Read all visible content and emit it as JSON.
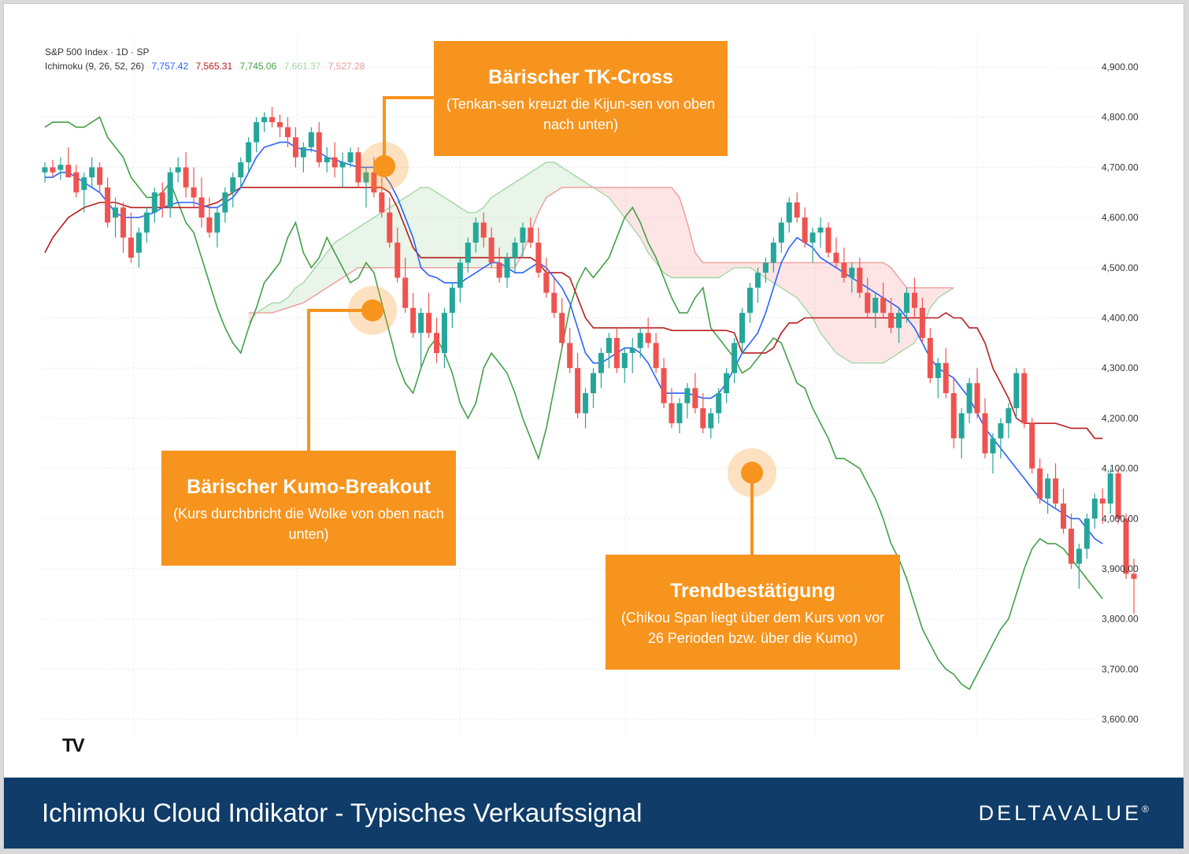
{
  "header": {
    "symbol": "S&P 500 Index · 1D · SP",
    "indicator": "Ichimoku (9, 26, 52, 26)",
    "values": [
      {
        "text": "7,757.42",
        "color": "#2962ff"
      },
      {
        "text": "7,565.31",
        "color": "#b71c1c"
      },
      {
        "text": "7,745.06",
        "color": "#43a047"
      },
      {
        "text": "7,661.37",
        "color": "#a5d6a7"
      },
      {
        "text": "7,527.28",
        "color": "#ef9a9a"
      }
    ]
  },
  "colors": {
    "tenkan": "#2962ff",
    "kijun": "#b71c1c",
    "chikou": "#43a047",
    "senkou_a": "#a5d6a7",
    "senkou_b": "#ef9a9a",
    "up": "#26a69a",
    "down": "#ef5350",
    "callout": "#f7941d",
    "footer": "#0f3c68"
  },
  "chart_data": {
    "type": "candlestick",
    "ylim": [
      3580,
      4940
    ],
    "yticks": [
      "3,600.00",
      "3,700.00",
      "3,800.00",
      "3,900.00",
      "4,000.00",
      "4,100.00",
      "4,200.00",
      "4,300.00",
      "4,400.00",
      "4,500.00",
      "4,600.00",
      "4,700.00",
      "4,800.00",
      "4,900.00"
    ],
    "candles": [
      [
        4690,
        4710,
        4670,
        4700
      ],
      [
        4700,
        4715,
        4680,
        4690
      ],
      [
        4695,
        4720,
        4675,
        4705
      ],
      [
        4705,
        4740,
        4690,
        4680
      ],
      [
        4690,
        4705,
        4640,
        4650
      ],
      [
        4655,
        4690,
        4610,
        4680
      ],
      [
        4680,
        4720,
        4660,
        4700
      ],
      [
        4700,
        4710,
        4650,
        4665
      ],
      [
        4660,
        4680,
        4580,
        4590
      ],
      [
        4600,
        4640,
        4560,
        4620
      ],
      [
        4620,
        4630,
        4530,
        4560
      ],
      [
        4560,
        4610,
        4510,
        4520
      ],
      [
        4530,
        4580,
        4500,
        4570
      ],
      [
        4570,
        4620,
        4550,
        4610
      ],
      [
        4610,
        4660,
        4590,
        4650
      ],
      [
        4650,
        4670,
        4600,
        4620
      ],
      [
        4620,
        4700,
        4600,
        4690
      ],
      [
        4690,
        4720,
        4670,
        4700
      ],
      [
        4700,
        4730,
        4640,
        4660
      ],
      [
        4660,
        4700,
        4620,
        4640
      ],
      [
        4640,
        4680,
        4580,
        4600
      ],
      [
        4600,
        4640,
        4560,
        4570
      ],
      [
        4570,
        4620,
        4540,
        4610
      ],
      [
        4610,
        4660,
        4590,
        4650
      ],
      [
        4650,
        4690,
        4620,
        4680
      ],
      [
        4680,
        4720,
        4660,
        4710
      ],
      [
        4710,
        4760,
        4690,
        4750
      ],
      [
        4750,
        4800,
        4730,
        4790
      ],
      [
        4790,
        4810,
        4770,
        4800
      ],
      [
        4800,
        4820,
        4780,
        4790
      ],
      [
        4790,
        4805,
        4760,
        4780
      ],
      [
        4780,
        4800,
        4740,
        4760
      ],
      [
        4760,
        4780,
        4700,
        4720
      ],
      [
        4720,
        4750,
        4690,
        4740
      ],
      [
        4740,
        4780,
        4730,
        4770
      ],
      [
        4770,
        4790,
        4700,
        4710
      ],
      [
        4710,
        4740,
        4690,
        4720
      ],
      [
        4720,
        4750,
        4680,
        4700
      ],
      [
        4700,
        4730,
        4660,
        4710
      ],
      [
        4710,
        4740,
        4700,
        4730
      ],
      [
        4730,
        4740,
        4660,
        4670
      ],
      [
        4670,
        4700,
        4620,
        4690
      ],
      [
        4690,
        4720,
        4640,
        4650
      ],
      [
        4650,
        4680,
        4600,
        4610
      ],
      [
        4610,
        4640,
        4540,
        4550
      ],
      [
        4550,
        4580,
        4470,
        4480
      ],
      [
        4480,
        4520,
        4410,
        4420
      ],
      [
        4420,
        4450,
        4360,
        4370
      ],
      [
        4370,
        4420,
        4300,
        4410
      ],
      [
        4410,
        4450,
        4360,
        4370
      ],
      [
        4370,
        4400,
        4310,
        4330
      ],
      [
        4330,
        4420,
        4300,
        4410
      ],
      [
        4410,
        4470,
        4380,
        4460
      ],
      [
        4460,
        4520,
        4430,
        4510
      ],
      [
        4510,
        4560,
        4490,
        4550
      ],
      [
        4550,
        4600,
        4530,
        4590
      ],
      [
        4590,
        4610,
        4540,
        4560
      ],
      [
        4560,
        4580,
        4500,
        4510
      ],
      [
        4510,
        4540,
        4470,
        4480
      ],
      [
        4480,
        4530,
        4460,
        4520
      ],
      [
        4520,
        4560,
        4490,
        4550
      ],
      [
        4550,
        4590,
        4520,
        4580
      ],
      [
        4580,
        4600,
        4540,
        4550
      ],
      [
        4550,
        4580,
        4480,
        4490
      ],
      [
        4490,
        4520,
        4440,
        4450
      ],
      [
        4450,
        4480,
        4400,
        4410
      ],
      [
        4410,
        4440,
        4340,
        4350
      ],
      [
        4350,
        4380,
        4290,
        4300
      ],
      [
        4300,
        4330,
        4200,
        4210
      ],
      [
        4210,
        4260,
        4180,
        4250
      ],
      [
        4250,
        4300,
        4220,
        4290
      ],
      [
        4290,
        4340,
        4260,
        4330
      ],
      [
        4330,
        4370,
        4300,
        4360
      ],
      [
        4360,
        4380,
        4290,
        4300
      ],
      [
        4300,
        4340,
        4270,
        4330
      ],
      [
        4330,
        4360,
        4290,
        4340
      ],
      [
        4340,
        4380,
        4320,
        4370
      ],
      [
        4370,
        4400,
        4340,
        4350
      ],
      [
        4350,
        4370,
        4290,
        4300
      ],
      [
        4300,
        4320,
        4220,
        4230
      ],
      [
        4230,
        4260,
        4180,
        4190
      ],
      [
        4190,
        4240,
        4170,
        4230
      ],
      [
        4230,
        4270,
        4200,
        4260
      ],
      [
        4260,
        4290,
        4210,
        4220
      ],
      [
        4220,
        4250,
        4170,
        4180
      ],
      [
        4180,
        4220,
        4160,
        4210
      ],
      [
        4210,
        4260,
        4190,
        4250
      ],
      [
        4250,
        4300,
        4230,
        4290
      ],
      [
        4290,
        4360,
        4270,
        4350
      ],
      [
        4350,
        4420,
        4330,
        4410
      ],
      [
        4410,
        4470,
        4390,
        4460
      ],
      [
        4460,
        4500,
        4430,
        4490
      ],
      [
        4490,
        4520,
        4470,
        4510
      ],
      [
        4510,
        4560,
        4490,
        4550
      ],
      [
        4550,
        4600,
        4530,
        4590
      ],
      [
        4590,
        4640,
        4570,
        4630
      ],
      [
        4630,
        4650,
        4590,
        4600
      ],
      [
        4600,
        4620,
        4540,
        4550
      ],
      [
        4550,
        4580,
        4510,
        4570
      ],
      [
        4570,
        4600,
        4540,
        4580
      ],
      [
        4580,
        4590,
        4520,
        4530
      ],
      [
        4530,
        4560,
        4500,
        4510
      ],
      [
        4510,
        4540,
        4470,
        4480
      ],
      [
        4480,
        4510,
        4450,
        4500
      ],
      [
        4500,
        4520,
        4440,
        4450
      ],
      [
        4450,
        4480,
        4400,
        4410
      ],
      [
        4410,
        4450,
        4380,
        4440
      ],
      [
        4440,
        4470,
        4400,
        4410
      ],
      [
        4410,
        4440,
        4370,
        4380
      ],
      [
        4380,
        4420,
        4350,
        4410
      ],
      [
        4410,
        4460,
        4390,
        4450
      ],
      [
        4450,
        4480,
        4400,
        4420
      ],
      [
        4420,
        4440,
        4350,
        4360
      ],
      [
        4360,
        4380,
        4270,
        4280
      ],
      [
        4280,
        4320,
        4240,
        4310
      ],
      [
        4310,
        4340,
        4240,
        4250
      ],
      [
        4250,
        4280,
        4140,
        4160
      ],
      [
        4160,
        4220,
        4120,
        4210
      ],
      [
        4210,
        4280,
        4190,
        4270
      ],
      [
        4270,
        4300,
        4200,
        4210
      ],
      [
        4210,
        4240,
        4120,
        4130
      ],
      [
        4130,
        4170,
        4090,
        4160
      ],
      [
        4160,
        4200,
        4120,
        4190
      ],
      [
        4190,
        4230,
        4160,
        4220
      ],
      [
        4220,
        4300,
        4200,
        4290
      ],
      [
        4290,
        4300,
        4180,
        4190
      ],
      [
        4190,
        4200,
        4090,
        4100
      ],
      [
        4100,
        4120,
        4030,
        4040
      ],
      [
        4040,
        4090,
        4010,
        4080
      ],
      [
        4080,
        4110,
        4020,
        4030
      ],
      [
        4030,
        4060,
        3970,
        3980
      ],
      [
        3980,
        4010,
        3900,
        3910
      ],
      [
        3910,
        3950,
        3860,
        3940
      ],
      [
        3940,
        4010,
        3920,
        4000
      ],
      [
        4000,
        4050,
        3980,
        4040
      ],
      [
        4040,
        4060,
        3990,
        4030
      ],
      [
        4030,
        4100,
        4010,
        4090
      ],
      [
        4090,
        4100,
        3990,
        4000
      ],
      [
        4000,
        4010,
        3880,
        3890
      ],
      [
        3890,
        3920,
        3810,
        3880
      ]
    ],
    "tenkan": [
      4680,
      4680,
      4690,
      4690,
      4680,
      4670,
      4660,
      4650,
      4630,
      4610,
      4600,
      4600,
      4600,
      4605,
      4610,
      4620,
      4625,
      4630,
      4630,
      4630,
      4625,
      4620,
      4620,
      4630,
      4640,
      4660,
      4690,
      4720,
      4740,
      4745,
      4750,
      4750,
      4740,
      4735,
      4735,
      4730,
      4720,
      4715,
      4710,
      4705,
      4700,
      4700,
      4700,
      4690,
      4670,
      4640,
      4600,
      4560,
      4500,
      4485,
      4480,
      4470,
      4470,
      4470,
      4480,
      4490,
      4500,
      4510,
      4510,
      4500,
      4490,
      4490,
      4500,
      4510,
      4500,
      4480,
      4460,
      4430,
      4380,
      4330,
      4310,
      4310,
      4320,
      4330,
      4340,
      4340,
      4330,
      4310,
      4280,
      4250,
      4250,
      4250,
      4250,
      4245,
      4240,
      4240,
      4250,
      4270,
      4300,
      4330,
      4350,
      4370,
      4410,
      4460,
      4510,
      4540,
      4560,
      4550,
      4540,
      4520,
      4510,
      4500,
      4490,
      4480,
      4470,
      4460,
      4450,
      4440,
      4430,
      4420,
      4400,
      4380,
      4350,
      4320,
      4300,
      4290,
      4280,
      4260,
      4240,
      4210,
      4180,
      4160,
      4140,
      4120,
      4100,
      4080,
      4060,
      4040,
      4030,
      4020,
      4010,
      4000,
      4000,
      3980,
      3960,
      3950
    ],
    "kijun": [
      4530,
      4560,
      4580,
      4600,
      4610,
      4620,
      4625,
      4630,
      4630,
      4630,
      4625,
      4620,
      4620,
      4620,
      4620,
      4620,
      4620,
      4620,
      4620,
      4620,
      4620,
      4625,
      4630,
      4640,
      4650,
      4660,
      4660,
      4660,
      4660,
      4660,
      4660,
      4660,
      4660,
      4660,
      4660,
      4660,
      4660,
      4660,
      4660,
      4660,
      4660,
      4660,
      4660,
      4660,
      4650,
      4620,
      4580,
      4540,
      4520,
      4520,
      4520,
      4520,
      4520,
      4520,
      4520,
      4520,
      4520,
      4520,
      4520,
      4520,
      4520,
      4520,
      4520,
      4510,
      4490,
      4490,
      4490,
      4480,
      4440,
      4400,
      4380,
      4380,
      4380,
      4380,
      4380,
      4380,
      4380,
      4380,
      4380,
      4380,
      4375,
      4375,
      4375,
      4375,
      4375,
      4375,
      4375,
      4375,
      4370,
      4330,
      4330,
      4330,
      4330,
      4340,
      4370,
      4390,
      4390,
      4400,
      4400,
      4400,
      4400,
      4400,
      4400,
      4400,
      4400,
      4400,
      4400,
      4400,
      4400,
      4400,
      4400,
      4400,
      4400,
      4400,
      4400,
      4410,
      4400,
      4400,
      4380,
      4380,
      4350,
      4300,
      4270,
      4240,
      4200,
      4190,
      4190,
      4190,
      4190,
      4190,
      4185,
      4180,
      4180,
      4180,
      4160,
      4160
    ],
    "senkou_a": [
      4390,
      4410,
      4420,
      4430,
      4430,
      4440,
      4460,
      4470,
      4490,
      4510,
      4530,
      4550,
      4560,
      4570,
      4580,
      4590,
      4600,
      4610,
      4620,
      4630,
      4640,
      4650,
      4660,
      4660,
      4650,
      4640,
      4630,
      4620,
      4610,
      4610,
      4620,
      4640,
      4650,
      4660,
      4670,
      4680,
      4690,
      4700,
      4710,
      4710,
      4700,
      4690,
      4680,
      4670,
      4660,
      4650,
      4640,
      4620,
      4600,
      4580,
      4560,
      4530,
      4510,
      4490,
      4480,
      4480,
      4480,
      4480,
      4480,
      4480,
      4480,
      4490,
      4500,
      4500,
      4500,
      4490,
      4480,
      4470,
      4460,
      4450,
      4440,
      4420,
      4400,
      4370,
      4350,
      4330,
      4320,
      4310,
      4310,
      4310,
      4310,
      4310,
      4320,
      4330,
      4340,
      4350,
      4380,
      4420,
      4440,
      4450,
      4460
    ],
    "senkou_b": [
      4410,
      4410,
      4410,
      4410,
      4415,
      4420,
      4425,
      4430,
      4440,
      4450,
      4460,
      4470,
      4480,
      4490,
      4500,
      4500,
      4500,
      4500,
      4500,
      4500,
      4500,
      4500,
      4500,
      4500,
      4500,
      4500,
      4500,
      4500,
      4500,
      4500,
      4500,
      4500,
      4500,
      4500,
      4500,
      4530,
      4570,
      4610,
      4640,
      4650,
      4660,
      4660,
      4660,
      4660,
      4660,
      4660,
      4660,
      4660,
      4660,
      4660,
      4660,
      4660,
      4660,
      4660,
      4660,
      4640,
      4590,
      4530,
      4510,
      4510,
      4510,
      4510,
      4510,
      4510,
      4510,
      4510,
      4510,
      4510,
      4510,
      4510,
      4510,
      4510,
      4510,
      4510,
      4510,
      4510,
      4510,
      4510,
      4510,
      4510,
      4510,
      4510,
      4500,
      4480,
      4460,
      4460,
      4460,
      4460,
      4460,
      4460,
      4460
    ],
    "chikou": [
      4780,
      4790,
      4790,
      4790,
      4780,
      4780,
      4790,
      4800,
      4760,
      4740,
      4720,
      4680,
      4660,
      4640,
      4640,
      4650,
      4670,
      4630,
      4590,
      4570,
      4520,
      4470,
      4420,
      4380,
      4350,
      4330,
      4380,
      4420,
      4470,
      4490,
      4510,
      4560,
      4590,
      4530,
      4500,
      4520,
      4560,
      4530,
      4500,
      4470,
      4480,
      4510,
      4490,
      4430,
      4370,
      4310,
      4270,
      4250,
      4300,
      4340,
      4360,
      4330,
      4290,
      4230,
      4200,
      4230,
      4300,
      4330,
      4310,
      4290,
      4250,
      4200,
      4160,
      4120,
      4180,
      4260,
      4340,
      4420,
      4470,
      4500,
      4480,
      4500,
      4520,
      4560,
      4600,
      4620,
      4590,
      4550,
      4520,
      4480,
      4440,
      4410,
      4410,
      4440,
      4460,
      4380,
      4360,
      4340,
      4320,
      4290,
      4300,
      4320,
      4340,
      4360,
      4350,
      4310,
      4270,
      4260,
      4220,
      4190,
      4160,
      4120,
      4120,
      4110,
      4100,
      4070,
      4040,
      4000,
      3950,
      3920,
      3880,
      3830,
      3780,
      3750,
      3720,
      3700,
      3690,
      3670,
      3660,
      3690,
      3720,
      3750,
      3780,
      3800,
      3850,
      3900,
      3940,
      3960,
      3950,
      3950,
      3940,
      3920,
      3900,
      3880,
      3860,
      3840
    ]
  },
  "callouts": {
    "tk_cross": {
      "title": "Bärischer TK-Cross",
      "subtitle": "(Tenkan-sen kreuzt die Kijun-sen von oben nach unten)"
    },
    "kumo_breakout": {
      "title": "Bärischer Kumo-Breakout",
      "subtitle": "(Kurs durchbricht die Wolke von oben nach unten)"
    },
    "trend": {
      "title": "Trendbestätigung",
      "subtitle": "(Chikou Span liegt über dem Kurs von vor 26 Perioden bzw. über die Kumo)"
    }
  },
  "footer": {
    "title": "Ichimoku Cloud Indikator - Typisches Verkaufssignal",
    "brand": "DELTAVALUE",
    "brand_mark": "®"
  },
  "watermark": "TV"
}
